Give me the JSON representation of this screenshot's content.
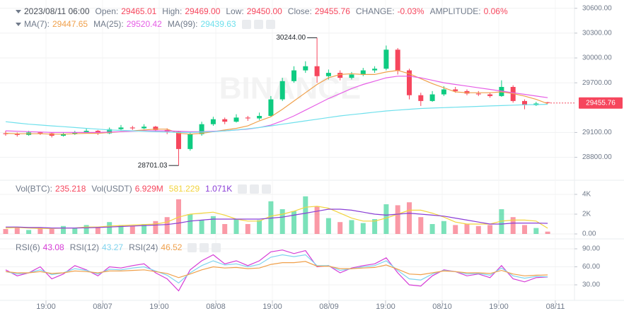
{
  "header": {
    "time": "2023/08/11 06:00",
    "fields": [
      {
        "label": "Open:",
        "value": "29465.01"
      },
      {
        "label": "High:",
        "value": "29469.00"
      },
      {
        "label": "Low:",
        "value": "29450.00"
      },
      {
        "label": "Close:",
        "value": "29455.76"
      },
      {
        "label": "CHANGE:",
        "value": "-0.03%"
      },
      {
        "label": "AMPLITUDE:",
        "value": "0.06%"
      }
    ]
  },
  "watermark": "BINANCE",
  "x_axis": {
    "labels": [
      "19:00",
      "08/07",
      "19:00",
      "08/08",
      "19:00",
      "08/09",
      "19:00",
      "08/10",
      "19:00",
      "08/11"
    ]
  },
  "chart_data": [
    {
      "type": "candlestick",
      "up_color": "#0ecb81",
      "down_color": "#f6465d",
      "candles": [
        [
          29090,
          29120,
          29060,
          29080
        ],
        [
          29080,
          29100,
          29050,
          29070
        ],
        [
          29070,
          29120,
          29060,
          29100
        ],
        [
          29100,
          29110,
          29070,
          29090
        ],
        [
          29090,
          29100,
          29040,
          29060
        ],
        [
          29060,
          29100,
          29050,
          29080
        ],
        [
          29080,
          29120,
          29070,
          29100
        ],
        [
          29100,
          29150,
          29090,
          29120
        ],
        [
          29120,
          29130,
          29070,
          29090
        ],
        [
          29090,
          29160,
          29080,
          29140
        ],
        [
          29140,
          29190,
          29120,
          29160
        ],
        [
          29160,
          29180,
          29130,
          29150
        ],
        [
          29150,
          29200,
          29140,
          29170
        ],
        [
          29170,
          29180,
          29110,
          29130
        ],
        [
          29130,
          29150,
          29080,
          29110
        ],
        [
          29110,
          29120,
          28701.03,
          28900
        ],
        [
          28900,
          29100,
          28880,
          29080
        ],
        [
          29080,
          29230,
          29060,
          29200
        ],
        [
          29200,
          29290,
          29180,
          29260
        ],
        [
          29260,
          29280,
          29200,
          29230
        ],
        [
          29230,
          29320,
          29220,
          29280
        ],
        [
          29280,
          29300,
          29240,
          29270
        ],
        [
          29270,
          29340,
          29250,
          29300
        ],
        [
          29300,
          29540,
          29290,
          29500
        ],
        [
          29500,
          29760,
          29480,
          29720
        ],
        [
          29720,
          29900,
          29700,
          29850
        ],
        [
          29850,
          29960,
          29820,
          29900
        ],
        [
          29900,
          30244,
          29700,
          29780
        ],
        [
          29780,
          29860,
          29740,
          29820
        ],
        [
          29820,
          29850,
          29730,
          29760
        ],
        [
          29760,
          29830,
          29740,
          29800
        ],
        [
          29800,
          29880,
          29780,
          29850
        ],
        [
          29850,
          29900,
          29820,
          29870
        ],
        [
          29870,
          30150,
          29850,
          30100
        ],
        [
          30100,
          30120,
          29800,
          29850
        ],
        [
          29850,
          29870,
          29500,
          29550
        ],
        [
          29550,
          29580,
          29420,
          29480
        ],
        [
          29480,
          29600,
          29470,
          29560
        ],
        [
          29560,
          29660,
          29540,
          29620
        ],
        [
          29620,
          29650,
          29580,
          29600
        ],
        [
          29600,
          29620,
          29550,
          29570
        ],
        [
          29570,
          29600,
          29540,
          29560
        ],
        [
          29560,
          29580,
          29520,
          29540
        ],
        [
          29540,
          29730,
          29530,
          29650
        ],
        [
          29650,
          29670,
          29460,
          29480
        ],
        [
          29480,
          29500,
          29380,
          29430
        ],
        [
          29430,
          29470,
          29420,
          29450
        ],
        [
          29465.01,
          29469,
          29450,
          29455.76
        ]
      ],
      "series": [
        {
          "name": "MA(7):",
          "color": "#f0a04b",
          "values": [
            29090,
            29085,
            29085,
            29085,
            29080,
            29080,
            29085,
            29090,
            29090,
            29100,
            29110,
            29120,
            29130,
            29140,
            29140,
            29090,
            29080,
            29090,
            29110,
            29130,
            29150,
            29180,
            29240,
            29290,
            29380,
            29480,
            29580,
            29680,
            29760,
            29800,
            29810,
            29800,
            29800,
            29830,
            29850,
            29810,
            29750,
            29690,
            29640,
            29590,
            29580,
            29580,
            29580,
            29590,
            29570,
            29540,
            29500,
            29447.65
          ]
        },
        {
          "name": "MA(25):",
          "color": "#e65ee6",
          "values": [
            29120,
            29115,
            29110,
            29105,
            29100,
            29100,
            29100,
            29100,
            29100,
            29105,
            29110,
            29115,
            29120,
            29120,
            29120,
            29115,
            29110,
            29110,
            29115,
            29120,
            29130,
            29140,
            29160,
            29190,
            29240,
            29300,
            29370,
            29440,
            29510,
            29570,
            29630,
            29680,
            29720,
            29760,
            29780,
            29780,
            29760,
            29730,
            29700,
            29680,
            29660,
            29640,
            29620,
            29600,
            29580,
            29560,
            29540,
            29520.42
          ]
        },
        {
          "name": "MA(99):",
          "color": "#6fe0ec",
          "values": [
            29230,
            29215,
            29200,
            29190,
            29180,
            29170,
            29160,
            29150,
            29140,
            29130,
            29125,
            29120,
            29115,
            29110,
            29105,
            29100,
            29100,
            29105,
            29110,
            29120,
            29130,
            29145,
            29160,
            29180,
            29200,
            29220,
            29240,
            29260,
            29280,
            29300,
            29315,
            29330,
            29345,
            29360,
            29370,
            29380,
            29390,
            29395,
            29400,
            29405,
            29410,
            29415,
            29420,
            29425,
            29430,
            29435,
            29437,
            29439.63
          ]
        }
      ],
      "annotations": [
        {
          "value": 30244,
          "label": "30244.00"
        },
        {
          "value": 28701.03,
          "label": "28701.03"
        }
      ],
      "ylim": [
        28600,
        30700
      ],
      "yticks": [
        {
          "value": 30600,
          "label": "30600.00"
        },
        {
          "value": 30300,
          "label": "30300.00"
        },
        {
          "value": 30000,
          "label": "30000.00"
        },
        {
          "value": 29700,
          "label": "29700.00"
        },
        {
          "value": 29100,
          "label": "29100.00"
        },
        {
          "value": 28800,
          "label": "28800.00"
        }
      ],
      "grid": true
    },
    {
      "type": "bar",
      "name": "Vol(BTC):",
      "values": [
        500,
        700,
        400,
        600,
        500,
        800,
        600,
        900,
        700,
        1200,
        900,
        800,
        1000,
        1300,
        1700,
        3500,
        2000,
        1400,
        1800,
        1000,
        1500,
        1000,
        1400,
        3300,
        2500,
        2300,
        3800,
        2800,
        1600,
        1200,
        1400,
        1100,
        1500,
        3000,
        2900,
        3200,
        1700,
        1000,
        1300,
        900,
        1000,
        800,
        900,
        2500,
        1700,
        900,
        600,
        235.218
      ],
      "extra": [
        {
          "name": "Vol(USDT)",
          "value": "6.929M"
        }
      ],
      "series": [
        {
          "color": "#f2d43d",
          "values": [
            600,
            650,
            600,
            550,
            550,
            600,
            600,
            700,
            700,
            800,
            850,
            900,
            950,
            1000,
            1200,
            1700,
            2000,
            2100,
            2200,
            1900,
            1500,
            1300,
            1300,
            1800,
            2000,
            2300,
            2700,
            2800,
            2600,
            2100,
            1600,
            1300,
            1300,
            1600,
            2000,
            2400,
            2400,
            2100,
            1700,
            1200,
            1000,
            1000,
            1000,
            1300,
            1400,
            1400,
            1300,
            581.229
          ]
        },
        {
          "color": "#8a3ed6",
          "readout": "1.071K",
          "values": [
            700,
            700,
            650,
            650,
            600,
            600,
            600,
            620,
            650,
            700,
            750,
            800,
            850,
            900,
            950,
            1100,
            1300,
            1400,
            1500,
            1500,
            1500,
            1500,
            1500,
            1600,
            1700,
            1900,
            2100,
            2300,
            2500,
            2500,
            2400,
            2200,
            2000,
            1900,
            2000,
            2100,
            2000,
            1900,
            1800,
            1600,
            1400,
            1200,
            1000,
            1000,
            1100,
            1100,
            1100,
            1071
          ]
        }
      ],
      "ylim": [
        0,
        4000
      ],
      "yticks": [
        {
          "value": 4000,
          "label": "4K"
        },
        {
          "value": 2000,
          "label": "2K"
        },
        {
          "value": 0,
          "label": "0.00"
        }
      ],
      "grid": true
    },
    {
      "type": "line",
      "series": [
        {
          "name": "RSI(6)",
          "color": "#d63cd6",
          "values": [
            55,
            45,
            50,
            60,
            40,
            48,
            62,
            55,
            45,
            60,
            58,
            62,
            65,
            50,
            40,
            20,
            55,
            70,
            80,
            65,
            70,
            62,
            70,
            85,
            88,
            82,
            87,
            60,
            62,
            50,
            58,
            62,
            65,
            75,
            50,
            30,
            28,
            45,
            55,
            52,
            45,
            48,
            42,
            62,
            40,
            35,
            42,
            43.08
          ]
        },
        {
          "name": "RSI(12)",
          "color": "#7fd3ee",
          "values": [
            52,
            48,
            50,
            55,
            47,
            50,
            57,
            54,
            48,
            56,
            55,
            58,
            60,
            53,
            46,
            33,
            50,
            62,
            70,
            63,
            65,
            60,
            64,
            76,
            80,
            77,
            80,
            62,
            62,
            54,
            57,
            60,
            62,
            70,
            54,
            40,
            38,
            48,
            54,
            52,
            48,
            49,
            46,
            58,
            45,
            41,
            44,
            43.27
          ]
        },
        {
          "name": "RSI(24)",
          "color": "#f0a04b",
          "values": [
            52,
            50,
            50,
            52,
            49,
            50,
            53,
            52,
            50,
            53,
            53,
            54,
            55,
            52,
            49,
            42,
            48,
            55,
            60,
            58,
            59,
            57,
            58,
            64,
            67,
            67,
            69,
            61,
            61,
            57,
            57,
            58,
            59,
            63,
            56,
            48,
            47,
            50,
            53,
            52,
            50,
            50,
            49,
            54,
            48,
            45,
            46,
            46.52
          ]
        }
      ],
      "ylim": [
        20,
        100
      ],
      "yticks": [
        {
          "value": 90,
          "label": "90.00"
        },
        {
          "value": 60,
          "label": "60.00"
        },
        {
          "value": 30,
          "label": "30.00"
        }
      ],
      "grid": true
    }
  ]
}
